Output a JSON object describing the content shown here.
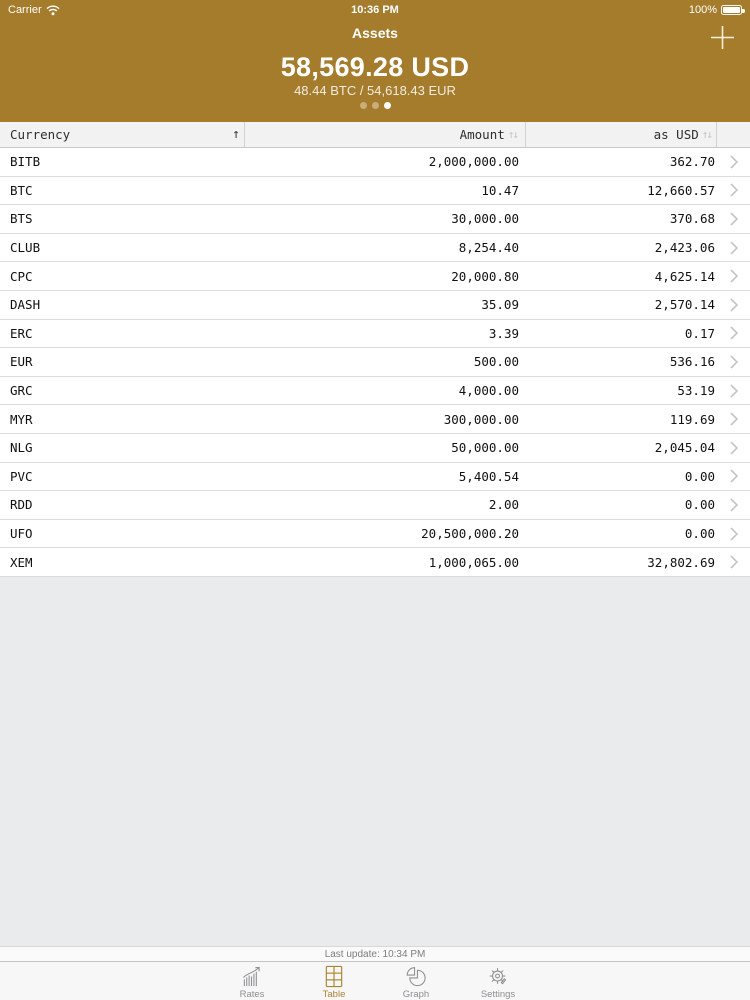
{
  "colors": {
    "header_gold": "#a57c2c",
    "accent_gold": "#ad8330",
    "inactive_tab_gray": "#8e8e93"
  },
  "status_bar": {
    "carrier": "Carrier",
    "time": "10:36 PM",
    "battery_percent": "100%"
  },
  "header": {
    "title": "Assets",
    "total": "58,569.28 USD",
    "subtotal": "48.44 BTC / 54,618.43 EUR"
  },
  "page_dots": {
    "count": 3,
    "active_index": 2
  },
  "table": {
    "columns": [
      {
        "label": "Currency",
        "sorted": true
      },
      {
        "label": "Amount",
        "sorted": false
      },
      {
        "label": "as USD",
        "sorted": false
      }
    ],
    "sort_glyphs": {
      "asc": "↑",
      "both": "↑↓"
    },
    "rows": [
      {
        "currency": "BITB",
        "amount": "2,000,000.00",
        "usd": "362.70"
      },
      {
        "currency": "BTC",
        "amount": "10.47",
        "usd": "12,660.57"
      },
      {
        "currency": "BTS",
        "amount": "30,000.00",
        "usd": "370.68"
      },
      {
        "currency": "CLUB",
        "amount": "8,254.40",
        "usd": "2,423.06"
      },
      {
        "currency": "CPC",
        "amount": "20,000.80",
        "usd": "4,625.14"
      },
      {
        "currency": "DASH",
        "amount": "35.09",
        "usd": "2,570.14"
      },
      {
        "currency": "ERC",
        "amount": "3.39",
        "usd": "0.17"
      },
      {
        "currency": "EUR",
        "amount": "500.00",
        "usd": "536.16"
      },
      {
        "currency": "GRC",
        "amount": "4,000.00",
        "usd": "53.19"
      },
      {
        "currency": "MYR",
        "amount": "300,000.00",
        "usd": "119.69"
      },
      {
        "currency": "NLG",
        "amount": "50,000.00",
        "usd": "2,045.04"
      },
      {
        "currency": "PVC",
        "amount": "5,400.54",
        "usd": "0.00"
      },
      {
        "currency": "RDD",
        "amount": "2.00",
        "usd": "0.00"
      },
      {
        "currency": "UFO",
        "amount": "20,500,000.20",
        "usd": "0.00"
      },
      {
        "currency": "XEM",
        "amount": "1,000,065.00",
        "usd": "32,802.69"
      }
    ]
  },
  "footer": {
    "last_update": "Last update: 10:34 PM"
  },
  "tab_bar": {
    "tabs": [
      {
        "label": "Rates",
        "icon": "bar-chart-icon",
        "active": false
      },
      {
        "label": "Table",
        "icon": "table-grid-icon",
        "active": true
      },
      {
        "label": "Graph",
        "icon": "pie-chart-icon",
        "active": false
      },
      {
        "label": "Settings",
        "icon": "gear-icon",
        "active": false
      }
    ]
  }
}
